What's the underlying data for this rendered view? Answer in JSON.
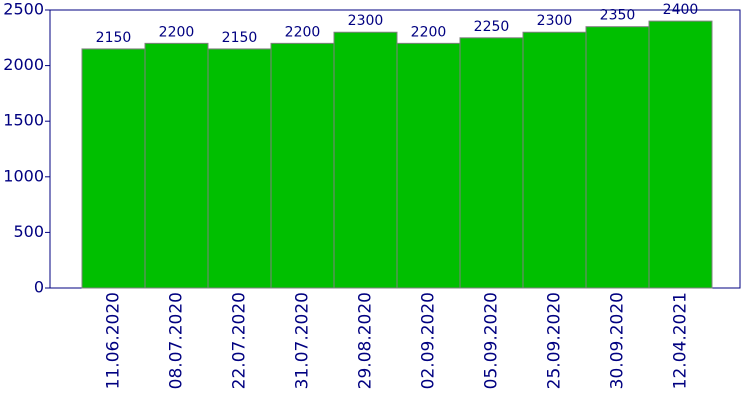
{
  "chart_data": {
    "type": "bar",
    "categories": [
      "11.06.2020",
      "08.07.2020",
      "22.07.2020",
      "31.07.2020",
      "29.08.2020",
      "02.09.2020",
      "05.09.2020",
      "25.09.2020",
      "30.09.2020",
      "12.04.2021"
    ],
    "values": [
      2150,
      2200,
      2150,
      2200,
      2300,
      2200,
      2250,
      2300,
      2350,
      2400
    ],
    "color": "#00bf00",
    "ylim": [
      0,
      2500
    ],
    "yticks": [
      0,
      500,
      1000,
      1500,
      2000,
      2500
    ],
    "grid": false
  }
}
